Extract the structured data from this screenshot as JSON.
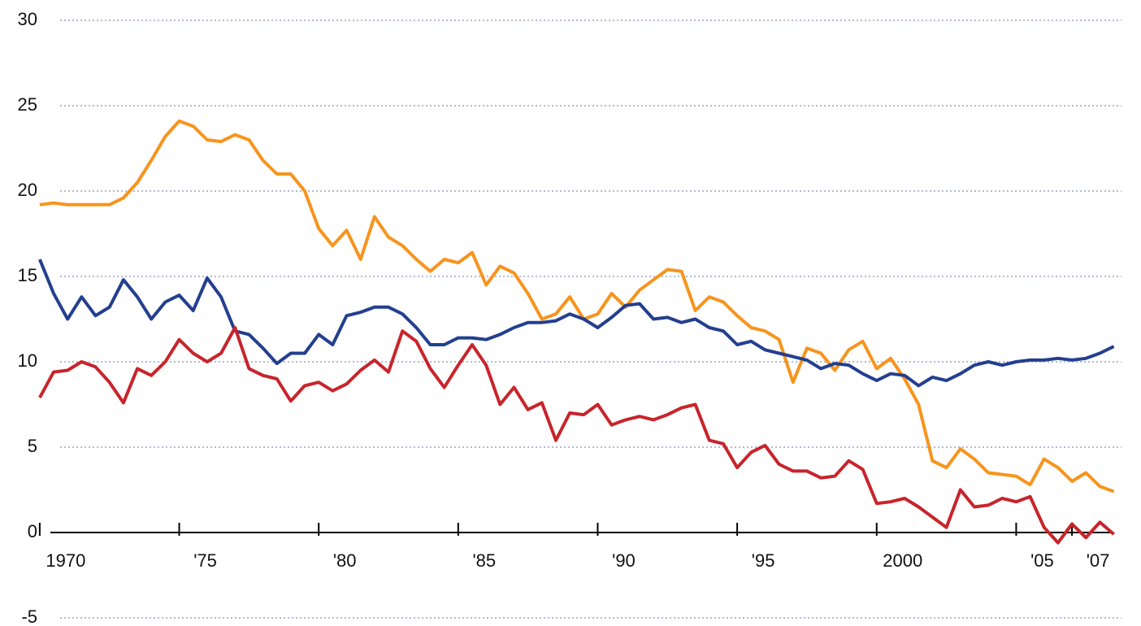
{
  "chart_data": {
    "type": "line",
    "x": [
      1970,
      1970.5,
      1971,
      1971.5,
      1972,
      1972.5,
      1973,
      1973.5,
      1974,
      1974.5,
      1975,
      1975.5,
      1976,
      1976.5,
      1977,
      1977.5,
      1978,
      1978.5,
      1979,
      1979.5,
      1980,
      1980.5,
      1981,
      1981.5,
      1982,
      1982.5,
      1983,
      1983.5,
      1984,
      1984.5,
      1985,
      1985.5,
      1986,
      1986.5,
      1987,
      1987.5,
      1988,
      1988.5,
      1989,
      1989.5,
      1990,
      1990.5,
      1991,
      1991.5,
      1992,
      1992.5,
      1993,
      1993.5,
      1994,
      1994.5,
      1995,
      1995.5,
      1996,
      1996.5,
      1997,
      1997.5,
      1998,
      1998.5,
      1999,
      1999.5,
      2000,
      2000.5,
      2001,
      2001.5,
      2002,
      2002.5,
      2003,
      2003.5,
      2004,
      2004.5,
      2005,
      2005.5,
      2006,
      2006.5,
      2007,
      2007.5,
      2008,
      2008.5
    ],
    "series": [
      {
        "color": "#f7941d",
        "values": [
          19.2,
          19.3,
          19.2,
          19.2,
          19.2,
          19.2,
          19.6,
          20.5,
          21.8,
          23.2,
          24.1,
          23.8,
          23.0,
          22.9,
          23.3,
          23.0,
          21.8,
          21.0,
          21.0,
          20.0,
          17.8,
          16.8,
          17.7,
          16.0,
          18.5,
          17.3,
          16.8,
          16.0,
          15.3,
          16.0,
          15.8,
          16.4,
          14.5,
          15.6,
          15.2,
          14.0,
          12.5,
          12.8,
          13.8,
          12.5,
          12.8,
          14.0,
          13.2,
          14.2,
          14.8,
          15.4,
          15.3,
          13.0,
          13.8,
          13.5,
          12.7,
          12.0,
          11.8,
          11.3,
          8.8,
          10.8,
          10.5,
          9.5,
          10.7,
          11.2,
          9.6,
          10.2,
          9.0,
          7.5,
          4.2,
          3.8,
          4.9,
          4.3,
          3.5,
          3.4,
          3.3,
          2.8,
          4.3,
          3.8,
          3.0,
          3.5,
          2.7,
          2.4
        ]
      },
      {
        "color": "#233f8f",
        "values": [
          16.0,
          14.0,
          12.5,
          13.8,
          12.7,
          13.2,
          14.8,
          13.8,
          12.5,
          13.5,
          13.9,
          13.0,
          14.9,
          13.8,
          11.8,
          11.6,
          10.8,
          9.9,
          10.5,
          10.5,
          11.6,
          11.0,
          12.7,
          12.9,
          13.2,
          13.2,
          12.8,
          12.0,
          11.0,
          11.0,
          11.4,
          11.4,
          11.3,
          11.6,
          12.0,
          12.3,
          12.3,
          12.4,
          12.8,
          12.5,
          12.0,
          12.6,
          13.3,
          13.4,
          12.5,
          12.6,
          12.3,
          12.5,
          12.0,
          11.8,
          11.0,
          11.2,
          10.7,
          10.5,
          10.3,
          10.1,
          9.6,
          9.9,
          9.8,
          9.3,
          8.9,
          9.3,
          9.2,
          8.6,
          9.1,
          8.9,
          9.3,
          9.8,
          10.0,
          9.8,
          10.0,
          10.1,
          10.1,
          10.2,
          10.1,
          10.2,
          10.5,
          10.9
        ]
      },
      {
        "color": "#c8242b",
        "values": [
          7.9,
          9.4,
          9.5,
          10.0,
          9.7,
          8.8,
          7.6,
          9.6,
          9.2,
          10.0,
          11.3,
          10.5,
          10.0,
          10.5,
          12.0,
          9.6,
          9.2,
          9.0,
          7.7,
          8.6,
          8.8,
          8.3,
          8.7,
          9.5,
          10.1,
          9.4,
          11.8,
          11.2,
          9.6,
          8.5,
          9.8,
          11.0,
          9.8,
          7.5,
          8.5,
          7.2,
          7.6,
          5.4,
          7.0,
          6.9,
          7.5,
          6.3,
          6.6,
          6.8,
          6.6,
          6.9,
          7.3,
          7.5,
          5.4,
          5.2,
          3.8,
          4.7,
          5.1,
          4.0,
          3.6,
          3.6,
          3.2,
          3.3,
          4.2,
          3.7,
          1.7,
          1.8,
          2.0,
          1.5,
          0.9,
          0.3,
          2.5,
          1.5,
          1.6,
          2.0,
          1.8,
          2.1,
          0.3,
          -0.6,
          0.5,
          -0.3,
          0.6,
          -0.1
        ]
      }
    ],
    "ylim": [
      -5,
      30
    ],
    "yticks": [
      -5,
      0,
      5,
      10,
      15,
      20,
      25,
      30
    ],
    "xlim": [
      1969.45,
      2008.6
    ],
    "xticks": [
      1970,
      {
        "value": 1975,
        "label": "'75"
      },
      {
        "value": 1980,
        "label": "'80"
      },
      {
        "value": 1985,
        "label": "'85"
      },
      {
        "value": 1990,
        "label": "'90"
      },
      {
        "value": 1995,
        "label": "'95"
      },
      2000,
      {
        "value": 2005,
        "label": "'05"
      },
      {
        "value": 2007,
        "label": "'07"
      }
    ],
    "grid": true
  }
}
